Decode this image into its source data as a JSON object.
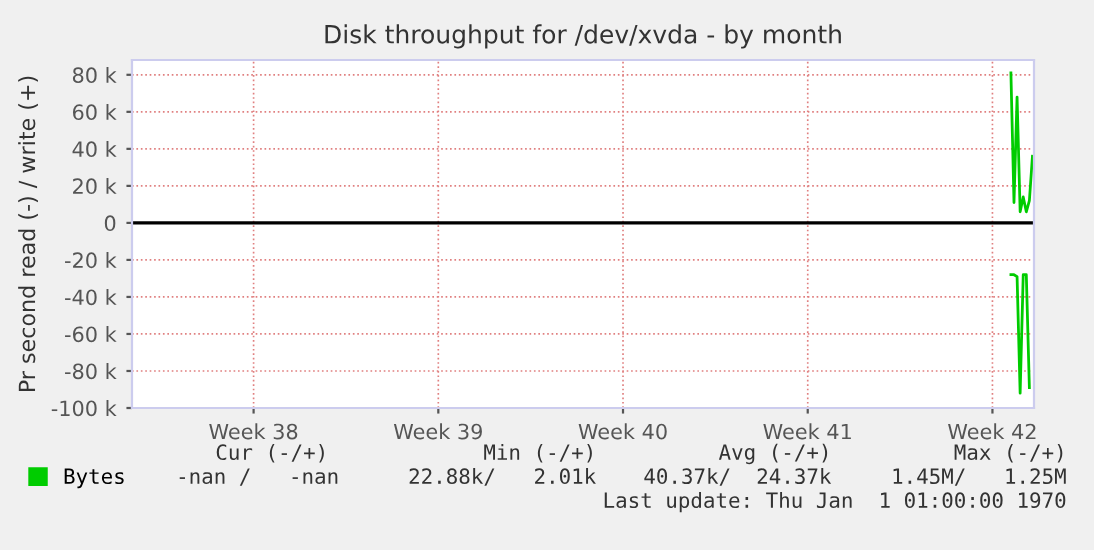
{
  "chart_data": {
    "type": "line",
    "title": "Disk throughput for /dev/xvda - by month",
    "ylabel": "Pr second read (-) / write (+)",
    "categories": [
      null,
      null,
      null,
      null,
      null,
      null,
      null,
      null,
      null,
      null,
      null,
      null,
      null,
      null,
      null,
      null,
      null,
      null,
      null,
      null,
      null,
      null,
      null,
      null,
      null,
      null,
      null,
      null,
      null,
      null,
      null,
      null,
      null,
      null,
      null,
      null,
      null,
      null,
      null,
      "Week 38",
      null,
      null,
      null,
      null,
      null,
      null,
      null,
      null,
      null,
      null,
      null,
      null,
      null,
      null,
      null,
      null,
      null,
      null,
      null,
      null,
      null,
      null,
      null,
      null,
      null,
      null,
      null,
      null,
      null,
      null,
      null,
      null,
      null,
      null,
      null,
      null,
      null,
      null,
      null,
      null,
      null,
      null,
      null,
      null,
      null,
      null,
      null,
      null,
      null,
      null,
      null,
      null,
      null,
      null,
      null,
      null,
      null,
      null,
      null,
      "Week 39",
      null,
      null,
      null,
      null,
      null,
      null,
      null,
      null,
      null,
      null,
      null,
      null,
      null,
      null,
      null,
      null,
      null,
      null,
      null,
      null,
      null,
      null,
      null,
      null,
      null,
      null,
      null,
      null,
      null,
      null,
      null,
      null,
      null,
      null,
      null,
      null,
      null,
      null,
      null,
      null,
      null,
      null,
      null,
      null,
      null,
      null,
      null,
      null,
      null,
      null,
      null,
      null,
      null,
      null,
      null,
      null,
      null,
      null,
      null,
      "Week 40",
      null,
      null,
      null,
      null,
      null,
      null,
      null,
      null,
      null,
      null,
      null,
      null,
      null,
      null,
      null,
      null,
      null,
      null,
      null,
      null,
      null,
      null,
      null,
      null,
      null,
      null,
      null,
      null,
      null,
      null,
      null,
      null,
      null,
      null,
      null,
      null,
      null,
      null,
      null,
      null,
      null,
      null,
      null,
      null,
      null,
      null,
      null,
      null,
      null,
      null,
      null,
      null,
      null,
      null,
      null,
      null,
      null,
      null,
      null,
      "Week 41",
      null,
      null,
      null,
      null,
      null,
      null,
      null,
      null,
      null,
      null,
      null,
      null,
      null,
      null,
      null,
      null,
      null,
      null,
      null,
      null,
      null,
      null,
      null,
      null,
      null,
      null,
      null,
      null,
      null,
      null,
      null,
      null,
      null,
      null,
      null,
      null,
      null,
      null,
      null,
      null,
      null,
      null,
      null,
      null,
      null,
      null,
      null,
      null,
      null,
      null,
      null,
      null,
      null,
      null,
      null,
      null,
      null,
      null,
      null,
      "Week 42",
      null,
      null,
      null,
      null,
      null,
      null,
      null,
      null,
      null,
      null,
      null,
      null,
      null
    ],
    "series": [
      {
        "name": "Bytes",
        "color": "#00cc00",
        "values": [
          null,
          null,
          null,
          null,
          null,
          null,
          null,
          null,
          null,
          null,
          null,
          null,
          null,
          null,
          null,
          null,
          null,
          null,
          null,
          null,
          null,
          null,
          null,
          null,
          null,
          null,
          null,
          null,
          null,
          null,
          null,
          null,
          null,
          null,
          null,
          null,
          null,
          null,
          null,
          null,
          null,
          null,
          null,
          null,
          null,
          null,
          null,
          null,
          null,
          null,
          null,
          null,
          null,
          null,
          null,
          null,
          null,
          null,
          null,
          null,
          null,
          null,
          null,
          null,
          null,
          null,
          null,
          null,
          null,
          null,
          null,
          null,
          null,
          null,
          null,
          null,
          null,
          null,
          null,
          null,
          null,
          null,
          null,
          null,
          null,
          null,
          null,
          null,
          null,
          null,
          null,
          null,
          null,
          null,
          null,
          null,
          null,
          null,
          null,
          null,
          null,
          null,
          null,
          null,
          null,
          null,
          null,
          null,
          null,
          null,
          null,
          null,
          null,
          null,
          null,
          null,
          null,
          null,
          null,
          null,
          null,
          null,
          null,
          null,
          null,
          null,
          null,
          null,
          null,
          null,
          null,
          null,
          null,
          null,
          null,
          null,
          null,
          null,
          null,
          null,
          null,
          null,
          null,
          null,
          null,
          null,
          null,
          null,
          null,
          null,
          null,
          null,
          null,
          null,
          null,
          null,
          null,
          null,
          null,
          null,
          null,
          null,
          null,
          null,
          null,
          null,
          null,
          null,
          null,
          null,
          null,
          null,
          null,
          null,
          null,
          null,
          null,
          null,
          null,
          null,
          null,
          null,
          null,
          null,
          null,
          null,
          null,
          null,
          null,
          null,
          null,
          null,
          null,
          null,
          null,
          null,
          null,
          null,
          null,
          null,
          null,
          null,
          null,
          null,
          null,
          null,
          null,
          null,
          null,
          null,
          null,
          null,
          null,
          null,
          null,
          null,
          null,
          null,
          null,
          null,
          null,
          null,
          null,
          null,
          null,
          null,
          null,
          null,
          null,
          null,
          null,
          null,
          null,
          null,
          null,
          null,
          null,
          null,
          null,
          null,
          null,
          null,
          null,
          null,
          null,
          null,
          null,
          null,
          null,
          null,
          null,
          null,
          null,
          null,
          null,
          null,
          null,
          null,
          null,
          null,
          null,
          null,
          null,
          null,
          null,
          null,
          null,
          null,
          null,
          null,
          null,
          null,
          null,
          null,
          null,
          null,
          null,
          null,
          null,
          null,
          null,
          null,
          null,
          null,
          null,
          81000,
          11000,
          68000,
          6000,
          14000,
          6000,
          12000,
          36000
        ]
      },
      {
        "color": "#00cc00",
        "values": [
          null,
          null,
          null,
          null,
          null,
          null,
          null,
          null,
          null,
          null,
          null,
          null,
          null,
          null,
          null,
          null,
          null,
          null,
          null,
          null,
          null,
          null,
          null,
          null,
          null,
          null,
          null,
          null,
          null,
          null,
          null,
          null,
          null,
          null,
          null,
          null,
          null,
          null,
          null,
          null,
          null,
          null,
          null,
          null,
          null,
          null,
          null,
          null,
          null,
          null,
          null,
          null,
          null,
          null,
          null,
          null,
          null,
          null,
          null,
          null,
          null,
          null,
          null,
          null,
          null,
          null,
          null,
          null,
          null,
          null,
          null,
          null,
          null,
          null,
          null,
          null,
          null,
          null,
          null,
          null,
          null,
          null,
          null,
          null,
          null,
          null,
          null,
          null,
          null,
          null,
          null,
          null,
          null,
          null,
          null,
          null,
          null,
          null,
          null,
          null,
          null,
          null,
          null,
          null,
          null,
          null,
          null,
          null,
          null,
          null,
          null,
          null,
          null,
          null,
          null,
          null,
          null,
          null,
          null,
          null,
          null,
          null,
          null,
          null,
          null,
          null,
          null,
          null,
          null,
          null,
          null,
          null,
          null,
          null,
          null,
          null,
          null,
          null,
          null,
          null,
          null,
          null,
          null,
          null,
          null,
          null,
          null,
          null,
          null,
          null,
          null,
          null,
          null,
          null,
          null,
          null,
          null,
          null,
          null,
          null,
          null,
          null,
          null,
          null,
          null,
          null,
          null,
          null,
          null,
          null,
          null,
          null,
          null,
          null,
          null,
          null,
          null,
          null,
          null,
          null,
          null,
          null,
          null,
          null,
          null,
          null,
          null,
          null,
          null,
          null,
          null,
          null,
          null,
          null,
          null,
          null,
          null,
          null,
          null,
          null,
          null,
          null,
          null,
          null,
          null,
          null,
          null,
          null,
          null,
          null,
          null,
          null,
          null,
          null,
          null,
          null,
          null,
          null,
          null,
          null,
          null,
          null,
          null,
          null,
          null,
          null,
          null,
          null,
          null,
          null,
          null,
          null,
          null,
          null,
          null,
          null,
          null,
          null,
          null,
          null,
          null,
          null,
          null,
          null,
          null,
          null,
          null,
          null,
          null,
          null,
          null,
          null,
          null,
          null,
          null,
          null,
          null,
          null,
          null,
          null,
          null,
          null,
          null,
          null,
          null,
          null,
          null,
          null,
          null,
          null,
          null,
          null,
          null,
          null,
          null,
          null,
          null,
          null,
          null,
          null,
          null,
          null,
          null,
          null,
          null,
          -28000,
          -28000,
          -29000,
          -92000,
          -28000,
          -28000,
          -89000,
          null
        ]
      }
    ],
    "ylim": [
      -100000,
      88000
    ],
    "yticks": [
      {
        "value": -100000,
        "label": "-100 k"
      },
      {
        "value": -80000,
        "label": "-80 k"
      },
      {
        "value": -60000,
        "label": "-60 k"
      },
      {
        "value": -40000,
        "label": "-40 k"
      },
      {
        "value": -20000,
        "label": "-20 k"
      },
      0,
      {
        "value": 20000,
        "label": "20 k"
      },
      {
        "value": 40000,
        "label": "40 k"
      },
      {
        "value": 60000,
        "label": "60 k"
      },
      {
        "value": 80000,
        "label": "80 k"
      }
    ],
    "ref_lines": [
      {
        "axis": "y",
        "value": 0,
        "color": "#000000"
      }
    ],
    "grid": true,
    "legend": "bottom",
    "line_style": "solid",
    "annotations": [
      "Cur (-/+)",
      "Min (-/+)",
      "Avg (-/+)",
      "Max (-/+)",
      "-nan /   -nan",
      "22.88k/   2.01k",
      "40.37k/  24.37k",
      "1.45M/   1.25M",
      "Last update: Thu Jan  1 01:00:00 1970"
    ]
  }
}
